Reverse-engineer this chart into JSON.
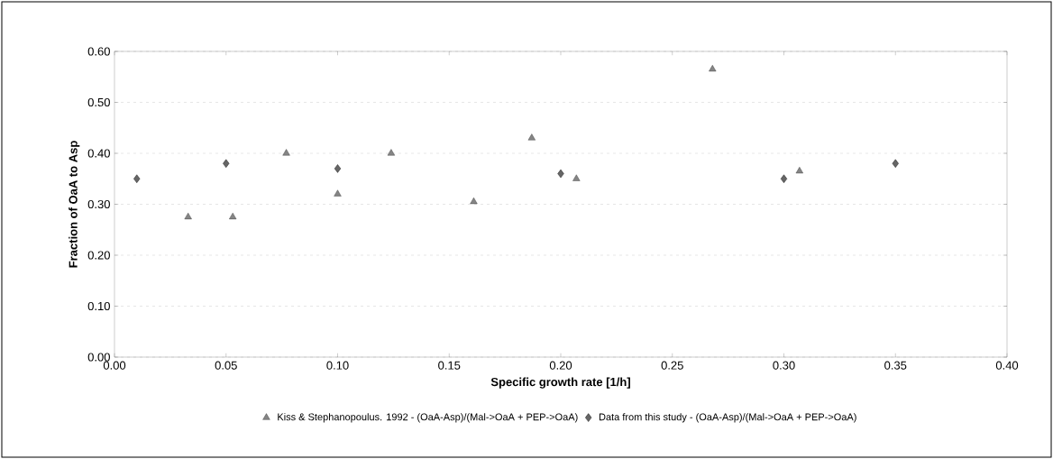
{
  "chart_data": {
    "type": "scatter",
    "xlabel": "Specific growth rate [1/h]",
    "ylabel": "Fraction of OaA to Asp",
    "series": [
      {
        "name": "Kiss & Stephanopoulus. 1992 - (OaA-Asp)/(Mal->OaA + PEP->OaA)",
        "color": "#333333",
        "marker": "triangle",
        "x": [
          0.033,
          0.053,
          0.077,
          0.1,
          0.124,
          0.161,
          0.187,
          0.207,
          0.268,
          0.307
        ],
        "values": [
          0.275,
          0.275,
          0.4,
          0.32,
          0.4,
          0.305,
          0.43,
          0.35,
          0.565,
          0.365
        ]
      },
      {
        "name": "Data from this study - (OaA-Asp)/(Mal->OaA + PEP->OaA)",
        "color": "#000000",
        "marker": "diamond",
        "x": [
          0.01,
          0.05,
          0.1,
          0.2,
          0.3,
          0.35
        ],
        "values": [
          0.35,
          0.38,
          0.37,
          0.36,
          0.35,
          0.38
        ]
      }
    ],
    "xlim": [
      0,
      0.4
    ],
    "ylim": [
      0,
      0.6
    ],
    "xticks": [
      {
        "value": 0,
        "label": "0.00"
      },
      {
        "value": 0.05,
        "label": "0.05"
      },
      {
        "value": 0.1,
        "label": "0.10"
      },
      {
        "value": 0.15,
        "label": "0.15"
      },
      {
        "value": 0.2,
        "label": "0.20"
      },
      {
        "value": 0.25,
        "label": "0.25"
      },
      {
        "value": 0.3,
        "label": "0.30"
      },
      {
        "value": 0.35,
        "label": "0.35"
      },
      {
        "value": 0.4,
        "label": "0.40"
      }
    ],
    "yticks": [
      {
        "value": 0,
        "label": "0.00"
      },
      {
        "value": 0.1,
        "label": "0.10"
      },
      {
        "value": 0.2,
        "label": "0.20"
      },
      {
        "value": 0.3,
        "label": "0.30"
      },
      {
        "value": 0.4,
        "label": "0.40"
      },
      {
        "value": 0.5,
        "label": "0.50"
      },
      {
        "value": 0.6,
        "label": "0.60"
      }
    ],
    "grid": "y",
    "legend": "bottom"
  }
}
